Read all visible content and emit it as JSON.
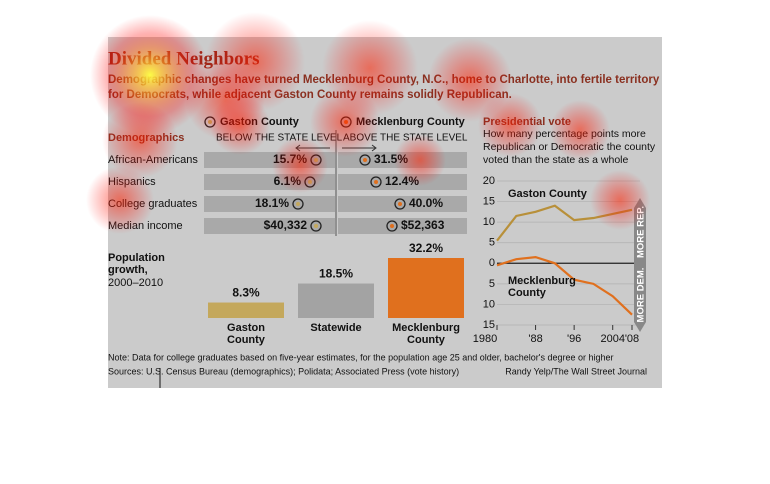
{
  "header": {
    "title": "Divided Neighbors",
    "subtitle_lines": [
      "Demographic changes have turned Mecklenburg County, N.C., home to Charlotte, into fertile territory",
      "for Democrats, while adjacent Gaston County remains solidly Republican."
    ]
  },
  "table": {
    "title": "Demographics",
    "columns": [
      {
        "name": "Gaston County",
        "note": "BELOW THE STATE LEVEL"
      },
      {
        "name": "Mecklenburg County",
        "note": "ABOVE THE STATE LEVEL"
      }
    ],
    "rows": [
      [
        "African-Americans",
        "15.7%",
        "31.5%"
      ],
      [
        "Hispanics",
        "6.1%",
        "12.4%"
      ],
      [
        "College graduates",
        "18.1%",
        "40.0%"
      ],
      [
        "Median income",
        "$40,332",
        "$52,363"
      ]
    ]
  },
  "chart_data": [
    {
      "type": "bar",
      "title_lines": [
        "Population",
        "growth,"
      ],
      "subtitle": "2000–2010",
      "categories": [
        "Gaston County",
        "Statewide",
        "Mecklenburg County"
      ],
      "values": [
        8.3,
        18.5,
        32.2
      ],
      "value_labels": [
        "8.3%",
        "18.5%",
        "32.2%"
      ],
      "colors": [
        "#c4a85c",
        "#a3a3a3",
        "#e0701e"
      ]
    },
    {
      "type": "line",
      "title": "Presidential vote",
      "subtitle_lines": [
        "How many percentage points more",
        "Republican or Democratic the county",
        "voted than the state as a whole"
      ],
      "x": [
        1980,
        1984,
        1988,
        1992,
        1996,
        2000,
        2004,
        2008
      ],
      "series": [
        {
          "name": "Gaston County",
          "color": "#b8903a",
          "values": [
            5.5,
            11.5,
            12.5,
            14,
            10.5,
            11,
            12,
            13
          ]
        },
        {
          "name": "Mecklenburg County",
          "color": "#e0701e",
          "values": [
            -0.5,
            1,
            1.5,
            0,
            -4,
            -5,
            -8,
            -12.5
          ]
        }
      ],
      "xlim": [
        1980,
        2008
      ],
      "xticks": [
        1980,
        {
          "value": 1988,
          "label": "'88"
        },
        {
          "value": 1996,
          "label": "'96"
        },
        2004,
        {
          "value": 2008,
          "label": "'08"
        }
      ],
      "ylim": [
        -15,
        20
      ],
      "yticks": [
        20,
        15,
        10,
        5,
        0,
        {
          "value": -5,
          "label": "5"
        },
        {
          "value": -10,
          "label": "10"
        },
        {
          "value": -15,
          "label": "15"
        }
      ],
      "annotations": [
        "MORE REP.",
        "MORE DEM."
      ],
      "grid": true
    }
  ],
  "notes": [
    "Note: Data for college graduates based on five-year estimates, for the population age 25 and older, bachelor's degree or higher",
    "Sources: U.S. Census Bureau (demographics); Polidata; Associated Press (vote history)"
  ],
  "credit": "Randy Yelp/The Wall Street Journal"
}
